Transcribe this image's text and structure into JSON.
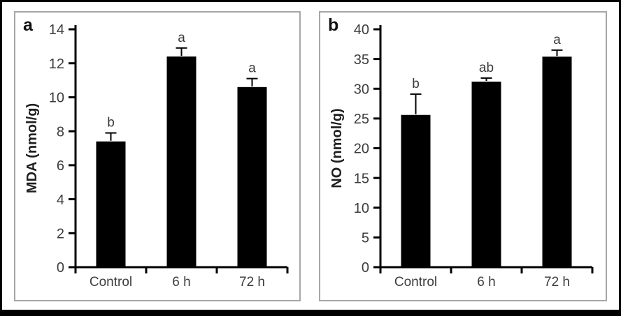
{
  "figure": {
    "description": "Two-panel bar chart figure",
    "colors": {
      "bar": "#000000",
      "axis": "#000000",
      "panel_border": "#a6a6a6",
      "outer_frame": "#000000",
      "tick_label": "#3d3d3d"
    }
  },
  "chart_data": [
    {
      "type": "bar",
      "panel_label": "a",
      "title": "",
      "xlabel": "",
      "ylabel": "MDA (nmol/g)",
      "ylim": [
        0,
        14
      ],
      "yticks": [
        0,
        2,
        4,
        6,
        8,
        10,
        12,
        14
      ],
      "categories": [
        "Control",
        "6 h",
        "72 h"
      ],
      "values": [
        7.4,
        12.4,
        10.6
      ],
      "errors": [
        0.5,
        0.5,
        0.5
      ],
      "error_direction": "upper",
      "sig_letters": [
        "b",
        "a",
        "a"
      ],
      "bar_color": "#000000",
      "grid": false,
      "legend": false
    },
    {
      "type": "bar",
      "panel_label": "b",
      "title": "",
      "xlabel": "",
      "ylabel": "NO (nmol/g)",
      "ylim": [
        0,
        40
      ],
      "yticks": [
        0,
        5,
        10,
        15,
        20,
        25,
        30,
        35,
        40
      ],
      "categories": [
        "Control",
        "6 h",
        "72 h"
      ],
      "values": [
        25.6,
        31.2,
        35.4
      ],
      "errors": [
        3.5,
        0.6,
        1.1
      ],
      "error_direction": "upper",
      "sig_letters": [
        "b",
        "ab",
        "a"
      ],
      "bar_color": "#000000",
      "grid": false,
      "legend": false
    }
  ]
}
